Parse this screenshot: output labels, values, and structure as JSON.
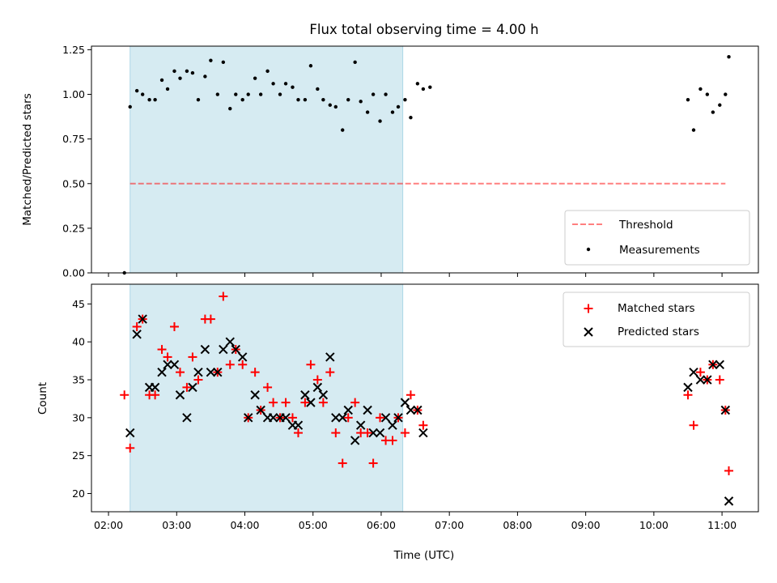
{
  "chart_data": [
    {
      "type": "scatter",
      "title": "Flux total observing time = 4.00 h",
      "xlabel": "",
      "ylabel": "Matched/Predicted stars",
      "xlim": [
        "01:45",
        "11:32"
      ],
      "ylim": [
        0,
        1.27
      ],
      "yticks": [
        "0.00",
        "0.25",
        "0.50",
        "0.75",
        "1.00",
        "1.25"
      ],
      "grid": false,
      "legend_position": "lower-right",
      "shaded_interval": {
        "start": "02:19",
        "end": "06:19",
        "color": "#add8e6"
      },
      "threshold": {
        "name": "Threshold",
        "value": 0.5,
        "x_start": "02:19",
        "x_end": "11:03",
        "color": "#ff0000",
        "alpha": 0.5,
        "style": "dashed"
      },
      "series": [
        {
          "name": "Measurements",
          "color": "#000000",
          "marker": "dot",
          "points": [
            [
              "02:14",
              0.0
            ],
            [
              "02:19",
              0.93
            ],
            [
              "02:25",
              1.02
            ],
            [
              "02:30",
              1.0
            ],
            [
              "02:36",
              0.97
            ],
            [
              "02:41",
              0.97
            ],
            [
              "02:47",
              1.08
            ],
            [
              "02:52",
              1.03
            ],
            [
              "02:58",
              1.13
            ],
            [
              "03:03",
              1.09
            ],
            [
              "03:09",
              1.13
            ],
            [
              "03:14",
              1.12
            ],
            [
              "03:19",
              0.97
            ],
            [
              "03:25",
              1.1
            ],
            [
              "03:30",
              1.19
            ],
            [
              "03:36",
              1.0
            ],
            [
              "03:41",
              1.18
            ],
            [
              "03:47",
              0.92
            ],
            [
              "03:52",
              1.0
            ],
            [
              "03:58",
              0.97
            ],
            [
              "04:03",
              1.0
            ],
            [
              "04:09",
              1.09
            ],
            [
              "04:14",
              1.0
            ],
            [
              "04:20",
              1.13
            ],
            [
              "04:25",
              1.06
            ],
            [
              "04:31",
              1.0
            ],
            [
              "04:36",
              1.06
            ],
            [
              "04:42",
              1.04
            ],
            [
              "04:47",
              0.97
            ],
            [
              "04:53",
              0.97
            ],
            [
              "04:58",
              1.16
            ],
            [
              "05:04",
              1.03
            ],
            [
              "05:09",
              0.97
            ],
            [
              "05:15",
              0.94
            ],
            [
              "05:20",
              0.93
            ],
            [
              "05:26",
              0.8
            ],
            [
              "05:31",
              0.97
            ],
            [
              "05:37",
              1.18
            ],
            [
              "05:42",
              0.96
            ],
            [
              "05:48",
              0.9
            ],
            [
              "05:53",
              1.0
            ],
            [
              "05:59",
              0.85
            ],
            [
              "06:04",
              1.0
            ],
            [
              "06:10",
              0.9
            ],
            [
              "06:15",
              0.93
            ],
            [
              "06:21",
              0.97
            ],
            [
              "06:26",
              0.87
            ],
            [
              "06:32",
              1.06
            ],
            [
              "06:37",
              1.03
            ],
            [
              "06:43",
              1.04
            ],
            [
              "10:30",
              0.97
            ],
            [
              "10:35",
              0.8
            ],
            [
              "10:41",
              1.03
            ],
            [
              "10:47",
              1.0
            ],
            [
              "10:52",
              0.9
            ],
            [
              "10:58",
              0.94
            ],
            [
              "11:03",
              1.0
            ],
            [
              "11:06",
              1.21
            ]
          ]
        }
      ]
    },
    {
      "type": "scatter",
      "title": "",
      "xlabel": "Time (UTC)",
      "ylabel": "Count",
      "xlim": [
        "01:45",
        "11:32"
      ],
      "ylim": [
        17.6,
        47.6
      ],
      "xticks": [
        "02:00",
        "03:00",
        "04:00",
        "05:00",
        "06:00",
        "07:00",
        "08:00",
        "09:00",
        "10:00",
        "11:00"
      ],
      "yticks": [
        "20",
        "25",
        "30",
        "35",
        "40",
        "45"
      ],
      "grid": false,
      "legend_position": "upper-right",
      "shaded_interval": {
        "start": "02:19",
        "end": "06:19",
        "color": "#add8e6"
      },
      "series": [
        {
          "name": "Matched stars",
          "color": "#ff0000",
          "marker": "plus",
          "points": [
            [
              "02:14",
              33
            ],
            [
              "02:19",
              26
            ],
            [
              "02:25",
              42
            ],
            [
              "02:30",
              43
            ],
            [
              "02:36",
              33
            ],
            [
              "02:41",
              33
            ],
            [
              "02:47",
              39
            ],
            [
              "02:52",
              38
            ],
            [
              "02:58",
              42
            ],
            [
              "03:03",
              36
            ],
            [
              "03:09",
              34
            ],
            [
              "03:14",
              38
            ],
            [
              "03:19",
              35
            ],
            [
              "03:25",
              43
            ],
            [
              "03:30",
              43
            ],
            [
              "03:36",
              36
            ],
            [
              "03:41",
              46
            ],
            [
              "03:47",
              37
            ],
            [
              "03:52",
              39
            ],
            [
              "03:58",
              37
            ],
            [
              "04:03",
              30
            ],
            [
              "04:09",
              36
            ],
            [
              "04:14",
              31
            ],
            [
              "04:20",
              34
            ],
            [
              "04:25",
              32
            ],
            [
              "04:31",
              30
            ],
            [
              "04:36",
              32
            ],
            [
              "04:42",
              30
            ],
            [
              "04:47",
              28
            ],
            [
              "04:53",
              32
            ],
            [
              "04:58",
              37
            ],
            [
              "05:04",
              35
            ],
            [
              "05:09",
              32
            ],
            [
              "05:15",
              36
            ],
            [
              "05:20",
              28
            ],
            [
              "05:26",
              24
            ],
            [
              "05:31",
              30
            ],
            [
              "05:37",
              32
            ],
            [
              "05:42",
              28
            ],
            [
              "05:48",
              28
            ],
            [
              "05:53",
              24
            ],
            [
              "05:59",
              30
            ],
            [
              "06:04",
              27
            ],
            [
              "06:10",
              27
            ],
            [
              "06:15",
              30
            ],
            [
              "06:21",
              28
            ],
            [
              "06:26",
              33
            ],
            [
              "06:32",
              31
            ],
            [
              "06:37",
              29
            ],
            [
              "10:30",
              33
            ],
            [
              "10:35",
              29
            ],
            [
              "10:41",
              36
            ],
            [
              "10:47",
              35
            ],
            [
              "10:52",
              37
            ],
            [
              "10:58",
              35
            ],
            [
              "11:03",
              31
            ],
            [
              "11:06",
              23
            ]
          ]
        },
        {
          "name": "Predicted stars",
          "color": "#000000",
          "marker": "x",
          "points": [
            [
              "02:19",
              28
            ],
            [
              "02:25",
              41
            ],
            [
              "02:30",
              43
            ],
            [
              "02:36",
              34
            ],
            [
              "02:41",
              34
            ],
            [
              "02:47",
              36
            ],
            [
              "02:52",
              37
            ],
            [
              "02:58",
              37
            ],
            [
              "03:03",
              33
            ],
            [
              "03:09",
              30
            ],
            [
              "03:14",
              34
            ],
            [
              "03:19",
              36
            ],
            [
              "03:25",
              39
            ],
            [
              "03:30",
              36
            ],
            [
              "03:36",
              36
            ],
            [
              "03:41",
              39
            ],
            [
              "03:47",
              40
            ],
            [
              "03:52",
              39
            ],
            [
              "03:58",
              38
            ],
            [
              "04:03",
              30
            ],
            [
              "04:09",
              33
            ],
            [
              "04:14",
              31
            ],
            [
              "04:20",
              30
            ],
            [
              "04:25",
              30
            ],
            [
              "04:31",
              30
            ],
            [
              "04:36",
              30
            ],
            [
              "04:42",
              29
            ],
            [
              "04:47",
              29
            ],
            [
              "04:53",
              33
            ],
            [
              "04:58",
              32
            ],
            [
              "05:04",
              34
            ],
            [
              "05:09",
              33
            ],
            [
              "05:15",
              38
            ],
            [
              "05:20",
              30
            ],
            [
              "05:26",
              30
            ],
            [
              "05:31",
              31
            ],
            [
              "05:37",
              27
            ],
            [
              "05:42",
              29
            ],
            [
              "05:48",
              31
            ],
            [
              "05:53",
              28
            ],
            [
              "05:59",
              28
            ],
            [
              "06:04",
              30
            ],
            [
              "06:10",
              29
            ],
            [
              "06:15",
              30
            ],
            [
              "06:21",
              32
            ],
            [
              "06:26",
              31
            ],
            [
              "06:32",
              31
            ],
            [
              "06:37",
              28
            ],
            [
              "10:30",
              34
            ],
            [
              "10:35",
              36
            ],
            [
              "10:41",
              35
            ],
            [
              "10:47",
              35
            ],
            [
              "10:52",
              37
            ],
            [
              "10:58",
              37
            ],
            [
              "11:03",
              31
            ],
            [
              "11:06",
              19
            ]
          ]
        }
      ]
    }
  ]
}
